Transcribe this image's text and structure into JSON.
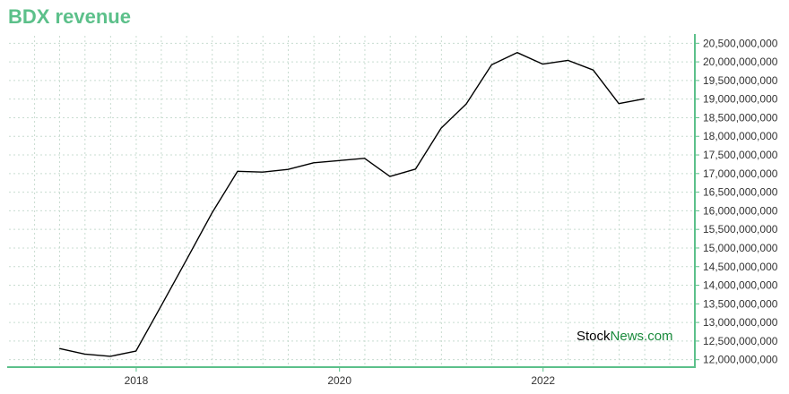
{
  "colors": {
    "accent": "#5cc08a",
    "line": "#000000",
    "grid": "#c8dcd0",
    "watermark_green": "#1a8a3c"
  },
  "watermark": {
    "part1": "Stock",
    "part2": "News.com"
  },
  "chart_data": {
    "type": "line",
    "title": "BDX revenue",
    "xlabel": "",
    "ylabel": "",
    "x_ticks": [
      "2018",
      "2020",
      "2022"
    ],
    "y_ticks": [
      "12,000,000,000",
      "12,500,000,000",
      "13,000,000,000",
      "13,500,000,000",
      "14,000,000,000",
      "14,500,000,000",
      "15,000,000,000",
      "15,500,000,000",
      "16,000,000,000",
      "16,500,000,000",
      "17,000,000,000",
      "17,500,000,000",
      "18,000,000,000",
      "18,500,000,000",
      "19,000,000,000",
      "19,500,000,000",
      "20,000,000,000",
      "20,500,000,000"
    ],
    "ylim": [
      11800000000,
      20700000000
    ],
    "xlim": [
      "2016-10-01",
      "2023-06-30"
    ],
    "grid": true,
    "y_axis_position": "right",
    "series": [
      {
        "x": [
          "2017-03-31",
          "2017-06-30",
          "2017-09-30",
          "2017-12-31",
          "2018-03-31",
          "2018-06-30",
          "2018-09-30",
          "2018-12-31",
          "2019-03-31",
          "2019-06-30",
          "2019-09-30",
          "2019-12-31",
          "2020-03-31",
          "2020-06-30",
          "2020-09-30",
          "2020-12-31",
          "2021-03-31",
          "2021-06-30",
          "2021-09-30",
          "2021-12-31",
          "2022-03-31",
          "2022-06-30",
          "2022-09-30",
          "2022-12-31"
        ],
        "values": [
          12300000000,
          12150000000,
          12090000000,
          12230000000,
          13440000000,
          14680000000,
          15940000000,
          17060000000,
          17040000000,
          17110000000,
          17290000000,
          17350000000,
          17410000000,
          16920000000,
          17120000000,
          18220000000,
          18870000000,
          19920000000,
          20250000000,
          19940000000,
          20040000000,
          19780000000,
          18880000000,
          19010000000
        ]
      }
    ]
  }
}
